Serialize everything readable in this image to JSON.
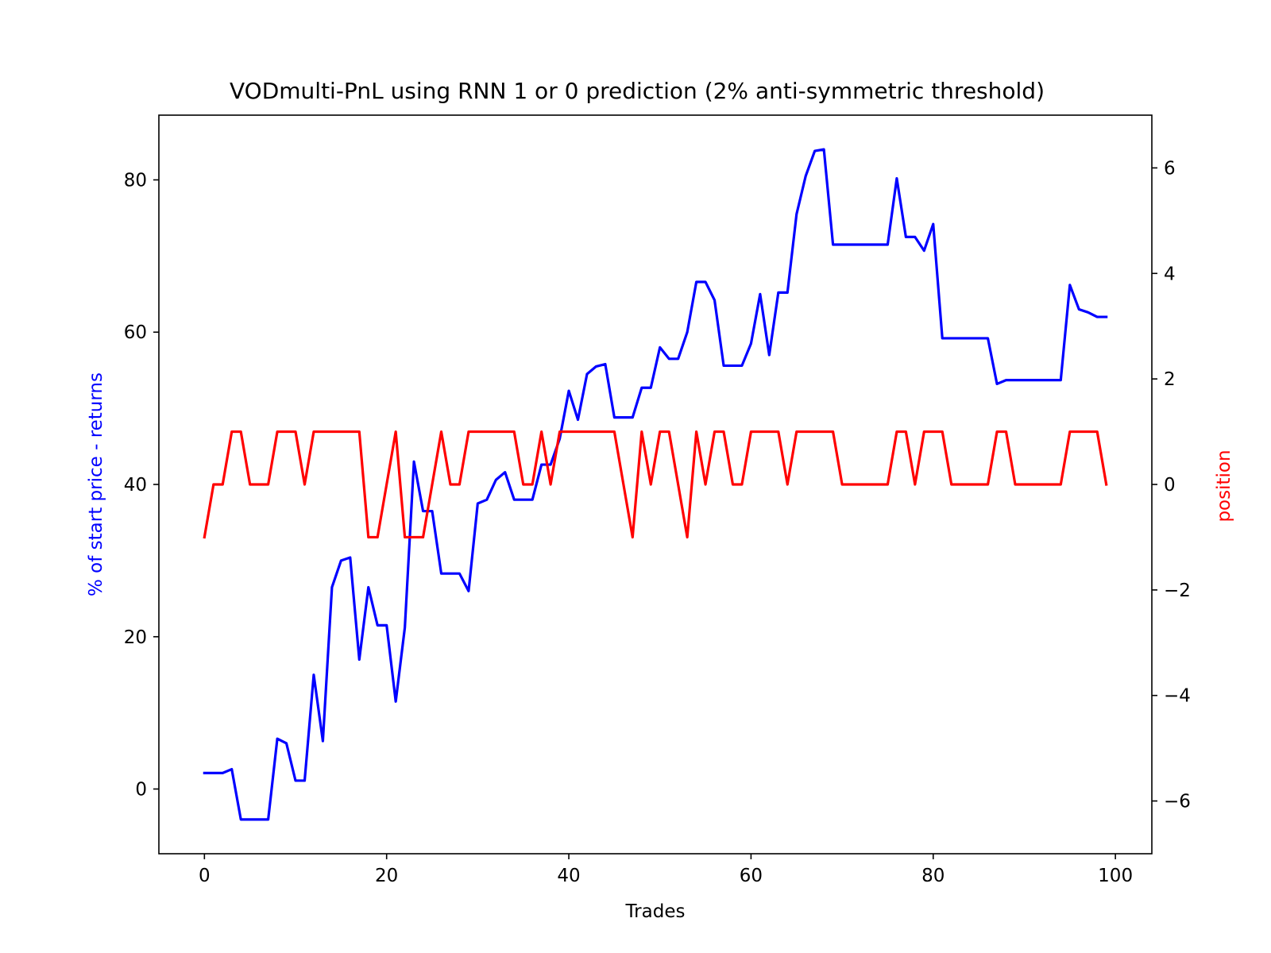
{
  "chart_data": {
    "type": "line",
    "title": "VODmulti-PnL using RNN 1 or 0 prediction (2% anti-symmetric threshold)",
    "xlabel": "Trades",
    "ylabel_left": "% of start price - returns",
    "ylabel_right": "position",
    "xlim": [
      -5,
      104
    ],
    "ylim_left": [
      -8.5,
      88.5
    ],
    "ylim_right": [
      -7.0,
      7.0
    ],
    "xticks": [
      0,
      20,
      40,
      60,
      80,
      100
    ],
    "xtick_labels": [
      "0",
      "20",
      "40",
      "60",
      "80",
      "100"
    ],
    "yticks_left": [
      0,
      20,
      40,
      60,
      80
    ],
    "ytick_labels_left": [
      "0",
      "20",
      "40",
      "60",
      "80"
    ],
    "yticks_right": [
      -6,
      -4,
      -2,
      0,
      2,
      4,
      6
    ],
    "ytick_labels_right": [
      "−6",
      "−4",
      "−2",
      "0",
      "2",
      "4",
      "6"
    ],
    "grid": false,
    "legend": false,
    "colors": {
      "left_axis": "#0000ff",
      "right_axis": "#ff0000"
    },
    "series": [
      {
        "axis": "left",
        "color": "#0000ff",
        "x": [
          0,
          1,
          2,
          3,
          4,
          5,
          6,
          7,
          8,
          9,
          10,
          11,
          12,
          13,
          14,
          15,
          16,
          17,
          18,
          19,
          20,
          21,
          22,
          23,
          24,
          25,
          26,
          27,
          28,
          29,
          30,
          31,
          32,
          33,
          34,
          35,
          36,
          37,
          38,
          39,
          40,
          41,
          42,
          43,
          44,
          45,
          46,
          47,
          48,
          49,
          50,
          51,
          52,
          53,
          54,
          55,
          56,
          57,
          58,
          59,
          60,
          61,
          62,
          63,
          64,
          65,
          66,
          67,
          68,
          69,
          70,
          71,
          72,
          73,
          74,
          75,
          76,
          77,
          78,
          79,
          80,
          81,
          82,
          83,
          84,
          85,
          86,
          87,
          88,
          89,
          90,
          91,
          92,
          93,
          94,
          95,
          96,
          97,
          98,
          99
        ],
        "values": [
          2.1,
          2.1,
          2.1,
          2.6,
          -4.0,
          -4.0,
          -4.0,
          -4.0,
          6.6,
          6.0,
          1.1,
          1.1,
          15.0,
          6.3,
          26.5,
          30.0,
          30.4,
          17.0,
          26.5,
          21.5,
          21.5,
          11.5,
          21.2,
          43.0,
          36.5,
          36.5,
          28.3,
          28.3,
          28.3,
          26.0,
          37.5,
          38.0,
          40.6,
          41.6,
          38.0,
          38.0,
          38.0,
          42.6,
          42.6,
          46.0,
          52.3,
          48.5,
          54.5,
          55.5,
          55.8,
          48.8,
          48.8,
          48.8,
          52.7,
          52.7,
          58.0,
          56.5,
          56.5,
          60.0,
          66.6,
          66.6,
          64.2,
          55.6,
          55.6,
          55.6,
          58.5,
          65.0,
          57.0,
          65.2,
          65.2,
          75.5,
          80.5,
          83.8,
          84.0,
          71.5,
          71.5,
          71.5,
          71.5,
          71.5,
          71.5,
          71.5,
          80.2,
          72.5,
          72.5,
          70.7,
          74.2,
          59.2,
          59.2,
          59.2,
          59.2,
          59.2,
          59.2,
          53.2,
          53.7,
          53.7,
          53.7,
          53.7,
          53.7,
          53.7,
          53.7,
          66.2,
          63.0,
          62.6,
          62.0,
          62.0
        ]
      },
      {
        "axis": "right",
        "color": "#ff0000",
        "x": [
          0,
          1,
          2,
          3,
          4,
          5,
          6,
          7,
          8,
          9,
          10,
          11,
          12,
          13,
          14,
          15,
          16,
          17,
          18,
          19,
          20,
          21,
          22,
          23,
          24,
          25,
          26,
          27,
          28,
          29,
          30,
          31,
          32,
          33,
          34,
          35,
          36,
          37,
          38,
          39,
          40,
          41,
          42,
          43,
          44,
          45,
          46,
          47,
          48,
          49,
          50,
          51,
          52,
          53,
          54,
          55,
          56,
          57,
          58,
          59,
          60,
          61,
          62,
          63,
          64,
          65,
          66,
          67,
          68,
          69,
          70,
          71,
          72,
          73,
          74,
          75,
          76,
          77,
          78,
          79,
          80,
          81,
          82,
          83,
          84,
          85,
          86,
          87,
          88,
          89,
          90,
          91,
          92,
          93,
          94,
          95,
          96,
          97,
          98,
          99
        ],
        "values": [
          -1,
          0,
          0,
          1,
          1,
          0,
          0,
          0,
          1,
          1,
          1,
          0,
          1,
          1,
          1,
          1,
          1,
          1,
          -1,
          -1,
          0,
          1,
          -1,
          -1,
          -1,
          0,
          1,
          0,
          0,
          1,
          1,
          1,
          1,
          1,
          1,
          0,
          0,
          1,
          0,
          1,
          1,
          1,
          1,
          1,
          1,
          1,
          0,
          -1,
          1,
          0,
          1,
          1,
          0,
          -1,
          1,
          0,
          1,
          1,
          0,
          0,
          1,
          1,
          1,
          1,
          0,
          1,
          1,
          1,
          1,
          1,
          0,
          0,
          0,
          0,
          0,
          0,
          1,
          1,
          0,
          1,
          1,
          1,
          0,
          0,
          0,
          0,
          0,
          1,
          1,
          0,
          0,
          0,
          0,
          0,
          0,
          1,
          1,
          1,
          1,
          0
        ]
      }
    ]
  }
}
